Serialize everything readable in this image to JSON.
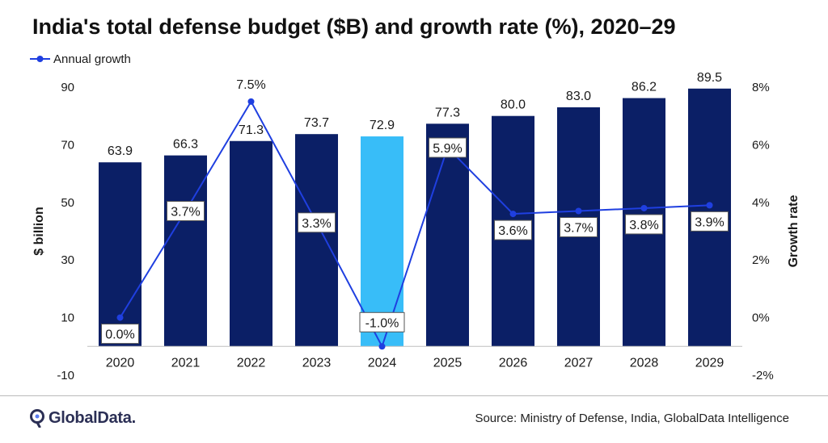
{
  "title": "India's total defense budget ($B) and growth rate (%), 2020–29",
  "source": "Source: Ministry of Defense, India, GlobalData Intelligence",
  "logo_text": "GlobalData.",
  "colors": {
    "bar": "#0b1f66",
    "bar_highlight": "#38bdf8",
    "line": "#1f3fe0",
    "axis": "#bfbfbf",
    "text": "#1a1a1a"
  },
  "chart_data": {
    "type": "bar+line",
    "categories": [
      "2020",
      "2021",
      "2022",
      "2023",
      "2024",
      "2025",
      "2026",
      "2027",
      "2028",
      "2029"
    ],
    "series": [
      {
        "values": [
          63.9,
          66.3,
          71.3,
          73.7,
          72.9,
          77.3,
          80.0,
          83.0,
          86.2,
          89.5
        ],
        "labels": [
          "63.9",
          "66.3",
          "71.3",
          "73.7",
          "72.9",
          "77.3",
          "80.0",
          "83.0",
          "86.2",
          "89.5"
        ],
        "highlight_index": 4,
        "axis": "left"
      },
      {
        "name": "Annual growth",
        "values": [
          0.0,
          3.7,
          7.5,
          3.3,
          -1.0,
          5.9,
          3.6,
          3.7,
          3.8,
          3.9
        ],
        "labels": [
          "0.0%",
          "3.7%",
          "7.5%",
          "3.3%",
          "-1.0%",
          "5.9%",
          "3.6%",
          "3.7%",
          "3.8%",
          "3.9%"
        ],
        "axis": "right"
      }
    ],
    "ylabel": "$ billion",
    "ylabel_right": "Growth rate",
    "ylim": [
      -10,
      90
    ],
    "yticks": [
      -10,
      10,
      30,
      50,
      70,
      90
    ],
    "ylim_right": [
      -2,
      8
    ],
    "yticks_right": [
      "-2%",
      "0%",
      "2%",
      "4%",
      "6%",
      "8%"
    ],
    "legend_position": "top-left",
    "grid": false
  }
}
